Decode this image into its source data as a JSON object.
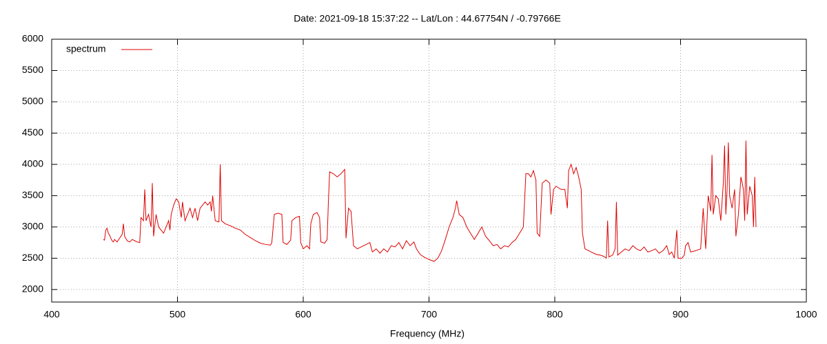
{
  "chart_data": {
    "type": "line",
    "title": "Date: 2021-09-18 15:37:22  --  Lat/Lon : 44.67754N / -0.79766E",
    "x_label": "Frequency (MHz)",
    "xlim": [
      400,
      1000
    ],
    "xticks": [
      400,
      500,
      600,
      700,
      800,
      900,
      1000
    ],
    "ylim": [
      1800,
      6000
    ],
    "yticks": [
      2000,
      2500,
      3000,
      3500,
      4000,
      4500,
      5000,
      5500,
      6000
    ],
    "grid": true,
    "legend": "top-left",
    "series": [
      {
        "name": "spectrum",
        "color": "#dd0000",
        "x": [
          441,
          442,
          443,
          444,
          445,
          446,
          447,
          448,
          449,
          450,
          452,
          454,
          456,
          457,
          458,
          460,
          462,
          464,
          466,
          468,
          470,
          471,
          473,
          474,
          475,
          477,
          479,
          480,
          481,
          483,
          485,
          487,
          489,
          491,
          493,
          494,
          495,
          497,
          499,
          501,
          503,
          504,
          506,
          508,
          510,
          512,
          514,
          516,
          518,
          520,
          522,
          524,
          526,
          527,
          528,
          530,
          533,
          534,
          535,
          538,
          542,
          546,
          550,
          554,
          558,
          562,
          566,
          570,
          574,
          575,
          577,
          580,
          583,
          584,
          587,
          590,
          591,
          594,
          597,
          598,
          600,
          603,
          605,
          606,
          608,
          611,
          613,
          614,
          617,
          619,
          620,
          621,
          624,
          627,
          630,
          633,
          634,
          636,
          638,
          640,
          643,
          646,
          650,
          653,
          655,
          658,
          661,
          664,
          667,
          670,
          673,
          676,
          679,
          682,
          685,
          688,
          690,
          693,
          696,
          700,
          704,
          707,
          710,
          713,
          716,
          719,
          721,
          722,
          724,
          727,
          730,
          733,
          736,
          739,
          742,
          745,
          748,
          751,
          754,
          757,
          760,
          763,
          766,
          769,
          772,
          775,
          777,
          779,
          781,
          783,
          785,
          786,
          788,
          790,
          793,
          796,
          797,
          799,
          801,
          805,
          808,
          810,
          811,
          813,
          815,
          817,
          819,
          821,
          822,
          824,
          827,
          830,
          833,
          836,
          839,
          841,
          842,
          843,
          846,
          848,
          849,
          850,
          853,
          856,
          859,
          862,
          865,
          868,
          871,
          874,
          877,
          880,
          883,
          886,
          889,
          891,
          893,
          895,
          897,
          898,
          901,
          903,
          904,
          906,
          908,
          912,
          916,
          918,
          920,
          922,
          924,
          925,
          926,
          928,
          930,
          932,
          934,
          935,
          936,
          937,
          938,
          939,
          941,
          943,
          944,
          946,
          948,
          950,
          951,
          952,
          953,
          955,
          957,
          958,
          959,
          960
        ],
        "values": [
          2800,
          2790,
          2950,
          2980,
          2900,
          2870,
          2820,
          2780,
          2760,
          2800,
          2760,
          2820,
          2880,
          3050,
          2850,
          2780,
          2760,
          2800,
          2780,
          2760,
          2750,
          3150,
          3100,
          3600,
          3100,
          3200,
          3000,
          3700,
          2850,
          3200,
          3000,
          2950,
          2900,
          3000,
          3100,
          2950,
          3200,
          3350,
          3450,
          3400,
          3150,
          3400,
          3100,
          3200,
          3300,
          3150,
          3300,
          3100,
          3300,
          3350,
          3400,
          3350,
          3400,
          3250,
          3500,
          3100,
          3080,
          4000,
          3100,
          3050,
          3020,
          2980,
          2950,
          2880,
          2830,
          2780,
          2740,
          2720,
          2710,
          2750,
          3200,
          3220,
          3200,
          2750,
          2720,
          2790,
          3100,
          3150,
          3170,
          2750,
          2650,
          2700,
          2650,
          3050,
          3200,
          3230,
          3150,
          2760,
          2740,
          2800,
          3400,
          3880,
          3850,
          3800,
          3850,
          3920,
          2820,
          3300,
          3250,
          2700,
          2650,
          2680,
          2720,
          2750,
          2600,
          2650,
          2580,
          2650,
          2600,
          2700,
          2680,
          2750,
          2650,
          2780,
          2700,
          2760,
          2650,
          2560,
          2520,
          2480,
          2450,
          2500,
          2620,
          2800,
          3000,
          3150,
          3300,
          3420,
          3200,
          3150,
          3000,
          2900,
          2800,
          2900,
          3000,
          2850,
          2780,
          2700,
          2720,
          2650,
          2700,
          2680,
          2750,
          2800,
          2900,
          3000,
          3850,
          3850,
          3800,
          3900,
          3750,
          2900,
          2850,
          3700,
          3750,
          3700,
          3200,
          3600,
          3650,
          3600,
          3600,
          3300,
          3900,
          4000,
          3850,
          3950,
          3800,
          3600,
          2900,
          2650,
          2620,
          2590,
          2560,
          2550,
          2530,
          2500,
          3100,
          2520,
          2550,
          2650,
          3400,
          2550,
          2600,
          2650,
          2620,
          2700,
          2650,
          2620,
          2680,
          2600,
          2620,
          2650,
          2580,
          2620,
          2700,
          2560,
          2600,
          2500,
          2950,
          2500,
          2500,
          2550,
          2700,
          2750,
          2600,
          2620,
          2650,
          3300,
          2650,
          3500,
          3250,
          4150,
          3200,
          3500,
          3450,
          3100,
          3700,
          4300,
          3200,
          3600,
          4350,
          3500,
          3300,
          3600,
          2850,
          3200,
          3800,
          3600,
          3100,
          4380,
          3200,
          3650,
          3500,
          3000,
          3800,
          3000
        ]
      }
    ]
  }
}
